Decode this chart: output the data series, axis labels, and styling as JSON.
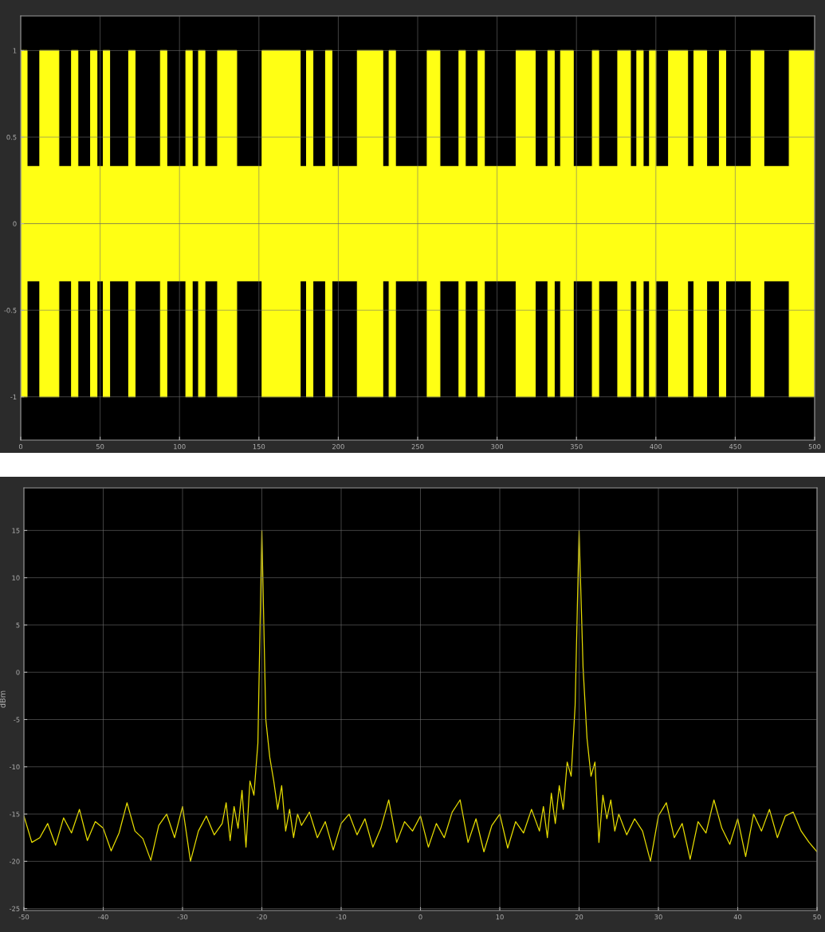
{
  "chart_data": [
    {
      "type": "area",
      "xlim": [
        0,
        500
      ],
      "ylim": [
        -1.25,
        1.2
      ],
      "xticks": [
        0,
        50,
        100,
        150,
        200,
        250,
        300,
        350,
        400,
        450,
        500
      ],
      "yticks": [
        -1,
        -0.5,
        0,
        0.5,
        1
      ],
      "grid": true,
      "x": [
        0,
        4,
        4,
        12,
        12,
        24,
        24,
        32,
        32,
        36,
        36,
        44,
        44,
        48,
        48,
        52,
        52,
        56,
        56,
        68,
        68,
        72,
        72,
        88,
        88,
        92,
        92,
        104,
        104,
        108,
        108,
        112,
        112,
        116,
        116,
        124,
        124,
        136,
        136,
        152,
        152,
        176,
        176,
        180,
        180,
        184,
        184,
        192,
        192,
        196,
        196,
        212,
        212,
        228,
        228,
        232,
        232,
        236,
        236,
        256,
        256,
        264,
        264,
        276,
        276,
        280,
        280,
        288,
        288,
        292,
        292,
        312,
        312,
        324,
        324,
        332,
        332,
        336,
        336,
        340,
        340,
        348,
        348,
        360,
        360,
        364,
        364,
        376,
        376,
        384,
        384,
        388,
        388,
        392,
        392,
        396,
        396,
        400,
        400,
        408,
        408,
        420,
        420,
        424,
        424,
        432,
        432,
        440,
        440,
        444,
        444,
        460,
        460,
        468,
        468,
        484,
        484,
        500
      ],
      "series": [
        {
          "color": "#ffff14",
          "values": [
            1,
            1,
            0.33,
            0.33,
            1,
            1,
            0.33,
            0.33,
            1,
            1,
            0.33,
            0.33,
            1,
            1,
            0.33,
            0.33,
            1,
            1,
            0.33,
            0.33,
            1,
            1,
            0.33,
            0.33,
            1,
            1,
            0.33,
            0.33,
            1,
            1,
            0.33,
            0.33,
            1,
            1,
            0.33,
            0.33,
            1,
            1,
            0.33,
            0.33,
            1,
            1,
            0.33,
            0.33,
            1,
            1,
            0.33,
            0.33,
            1,
            1,
            0.33,
            0.33,
            1,
            1,
            0.33,
            0.33,
            1,
            1,
            0.33,
            0.33,
            1,
            1,
            0.33,
            0.33,
            1,
            1,
            0.33,
            0.33,
            1,
            1,
            0.33,
            0.33,
            1,
            1,
            0.33,
            0.33,
            1,
            1,
            0.33,
            0.33,
            1,
            1,
            0.33,
            0.33,
            1,
            1,
            0.33,
            0.33,
            1,
            1,
            0.33,
            0.33,
            1,
            1,
            0.33,
            0.33,
            1,
            1,
            0.33,
            0.33,
            1,
            1,
            0.33,
            0.33,
            1,
            1,
            0.33,
            0.33,
            1,
            1,
            0.33,
            0.33,
            1,
            1,
            0.33,
            0.33,
            1,
            1
          ]
        },
        {
          "color": "#ffff14",
          "values": [
            -1,
            -1,
            -0.33,
            -0.33,
            -1,
            -1,
            -0.33,
            -0.33,
            -1,
            -1,
            -0.33,
            -0.33,
            -1,
            -1,
            -0.33,
            -0.33,
            -1,
            -1,
            -0.33,
            -0.33,
            -1,
            -1,
            -0.33,
            -0.33,
            -1,
            -1,
            -0.33,
            -0.33,
            -1,
            -1,
            -0.33,
            -0.33,
            -1,
            -1,
            -0.33,
            -0.33,
            -1,
            -1,
            -0.33,
            -0.33,
            -1,
            -1,
            -0.33,
            -0.33,
            -1,
            -1,
            -0.33,
            -0.33,
            -1,
            -1,
            -0.33,
            -0.33,
            -1,
            -1,
            -0.33,
            -0.33,
            -1,
            -1,
            -0.33,
            -0.33,
            -1,
            -1,
            -0.33,
            -0.33,
            -1,
            -1,
            -0.33,
            -0.33,
            -1,
            -1,
            -0.33,
            -0.33,
            -1,
            -1,
            -0.33,
            -0.33,
            -1,
            -1,
            -0.33,
            -0.33,
            -1,
            -1,
            -0.33,
            -0.33,
            -1,
            -1,
            -0.33,
            -0.33,
            -1,
            -1,
            -0.33,
            -0.33,
            -1,
            -1,
            -0.33,
            -0.33,
            -1,
            -1,
            -0.33,
            -0.33,
            -1,
            -1,
            -0.33,
            -0.33,
            -1,
            -1,
            -0.33,
            -0.33,
            -1,
            -1,
            -0.33,
            -0.33,
            -1,
            -1,
            -0.33,
            -0.33,
            -1,
            -1
          ]
        }
      ]
    },
    {
      "type": "line",
      "ylabel": "dBm",
      "xlim": [
        -50,
        50
      ],
      "ylim": [
        -25.2,
        19.5
      ],
      "xticks": [
        -50,
        -40,
        -30,
        -20,
        -10,
        0,
        10,
        20,
        30,
        40,
        50
      ],
      "yticks": [
        -25,
        -20,
        -15,
        -10,
        -5,
        0,
        5,
        10,
        15
      ],
      "grid": true,
      "x": [
        -50,
        -49,
        -48,
        -47,
        -46,
        -45,
        -44,
        -43,
        -42,
        -41,
        -40,
        -39,
        -38,
        -37,
        -36,
        -35,
        -34,
        -33,
        -32,
        -31,
        -30,
        -29,
        -28,
        -27,
        -26,
        -25,
        -24.5,
        -24,
        -23.5,
        -23,
        -22.5,
        -22,
        -21.5,
        -21,
        -20.5,
        -20,
        -19.5,
        -19,
        -18.5,
        -18,
        -17.5,
        -17,
        -16.5,
        -16,
        -15.5,
        -15,
        -14,
        -13,
        -12,
        -11,
        -10,
        -9,
        -8,
        -7,
        -6,
        -5,
        -4,
        -3,
        -2,
        -1,
        0,
        1,
        2,
        3,
        4,
        5,
        6,
        7,
        8,
        9,
        10,
        11,
        12,
        13,
        14,
        15,
        15.5,
        16,
        16.5,
        17,
        17.5,
        18,
        18.5,
        19,
        19.5,
        20,
        20.5,
        21,
        21.5,
        22,
        22.5,
        23,
        23.5,
        24,
        24.5,
        25,
        26,
        27,
        28,
        29,
        30,
        31,
        32,
        33,
        34,
        35,
        36,
        37,
        38,
        39,
        40,
        41,
        42,
        43,
        44,
        45,
        46,
        47,
        48,
        49,
        50
      ],
      "series": [
        {
          "color": "#e6dc00",
          "values": [
            -15.2,
            -18.0,
            -17.5,
            -16.0,
            -18.3,
            -15.4,
            -17.0,
            -14.5,
            -17.8,
            -15.8,
            -16.5,
            -18.9,
            -17.0,
            -13.8,
            -16.8,
            -17.6,
            -19.9,
            -16.2,
            -15.0,
            -17.5,
            -14.2,
            -20.0,
            -16.8,
            -15.2,
            -17.2,
            -16.0,
            -13.8,
            -17.8,
            -14.2,
            -16.5,
            -12.5,
            -18.5,
            -11.5,
            -13.0,
            -7.5,
            15.0,
            -5.0,
            -9.0,
            -11.5,
            -14.5,
            -12.0,
            -16.8,
            -14.5,
            -17.5,
            -15.0,
            -16.2,
            -14.8,
            -17.5,
            -15.8,
            -18.8,
            -16.0,
            -15.0,
            -17.2,
            -15.5,
            -18.5,
            -16.5,
            -13.5,
            -18.0,
            -15.8,
            -16.8,
            -15.2,
            -18.5,
            -16.0,
            -17.5,
            -14.8,
            -13.5,
            -18.0,
            -15.5,
            -19.0,
            -16.2,
            -15.0,
            -18.6,
            -15.8,
            -17.0,
            -14.5,
            -16.8,
            -14.2,
            -17.5,
            -12.8,
            -16.0,
            -12.0,
            -14.5,
            -9.5,
            -11.0,
            -3.5,
            15.0,
            0.5,
            -7.0,
            -11.0,
            -9.5,
            -18.0,
            -13.0,
            -15.5,
            -13.5,
            -16.8,
            -15.0,
            -17.2,
            -15.5,
            -16.8,
            -20.0,
            -15.2,
            -13.8,
            -17.5,
            -16.0,
            -19.8,
            -15.8,
            -17.0,
            -13.5,
            -16.5,
            -18.2,
            -15.5,
            -19.5,
            -15.0,
            -16.8,
            -14.5,
            -17.5,
            -15.2,
            -14.8,
            -16.8,
            -18.0,
            -19.0
          ]
        }
      ]
    }
  ]
}
